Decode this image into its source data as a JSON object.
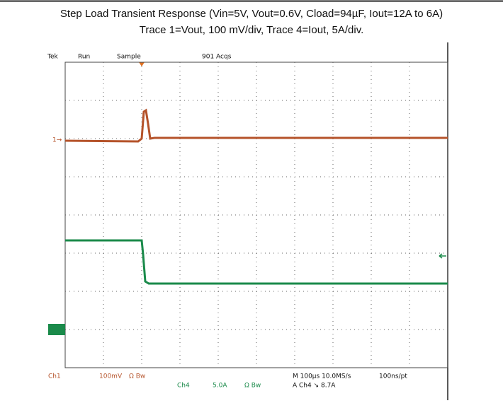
{
  "title": "Step Load Transient Response (Vin=5V, Vout=0.6V, Cload=94µF, Iout=12A to 6A)",
  "subtitle": "Trace 1=Vout, 100 mV/div, Trace 4=Iout, 5A/div.",
  "scope_header": {
    "brand": "Tek",
    "state": "Run",
    "mode": "Sample",
    "acqs": "901 Acqs"
  },
  "ch1_marker": "1→",
  "footer": {
    "ch1": {
      "name": "Ch1",
      "scale": "100mV",
      "coupling": "Ω Bw"
    },
    "ch4": {
      "name": "Ch4",
      "scale": "5.0A",
      "coupling": "Ω Bw"
    },
    "timebase": "M 100µs 10.0MS/s",
    "trigger": "A Ch4 ↘ 8.7A",
    "resolution": "100ns/pt"
  }
}
